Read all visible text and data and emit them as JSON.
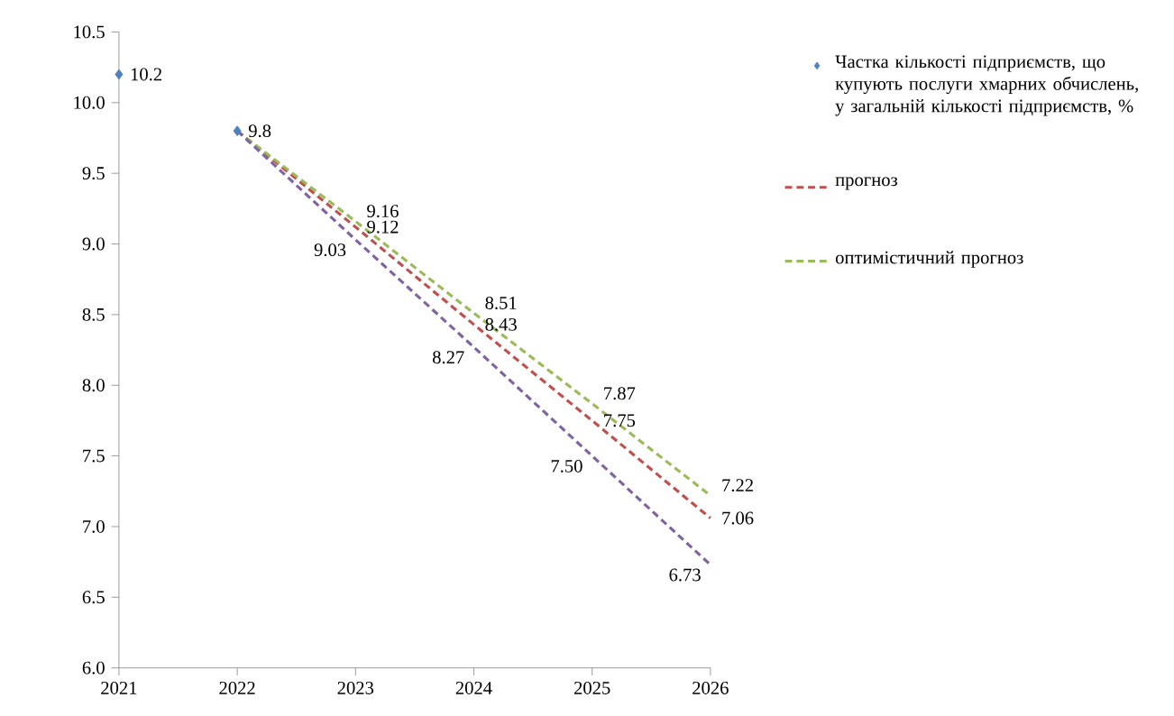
{
  "chart_data": {
    "type": "line",
    "xlim": [
      2021,
      2026
    ],
    "xticks": [
      2021,
      2022,
      2023,
      2024,
      2025,
      2026
    ],
    "ylim": [
      6,
      10.5
    ],
    "yticks": [
      {
        "value": 6,
        "label": "6.0"
      },
      {
        "value": 6.5,
        "label": "6.5"
      },
      {
        "value": 7,
        "label": "7.0"
      },
      {
        "value": 7.5,
        "label": "7.5"
      },
      {
        "value": 8,
        "label": "8.0"
      },
      {
        "value": 8.5,
        "label": "8.5"
      },
      {
        "value": 9,
        "label": "9.0"
      },
      {
        "value": 9.5,
        "label": "9.5"
      },
      {
        "value": 10,
        "label": "10.0"
      },
      {
        "value": 10.5,
        "label": "10.5"
      }
    ],
    "grid": false,
    "legend": "right",
    "series": [
      {
        "name": "Частка кількості підприємств, що купують послуги хмарних обчислень, у загальній кількості підприємств, %",
        "type": "scatter",
        "marker": "diamond",
        "color": "#4f81bd",
        "x": [
          2021,
          2022
        ],
        "values": [
          10.2,
          9.8
        ],
        "value_labels": [
          "10.2",
          "9.8"
        ]
      },
      {
        "name": "прогноз",
        "line_style": "dashed",
        "marker": "none",
        "color": "#c0504d",
        "x": [
          2022,
          2023,
          2024,
          2025,
          2026
        ],
        "values": [
          9.8,
          9.12,
          8.43,
          7.75,
          7.06
        ],
        "value_labels": [
          null,
          "9.12",
          "8.43",
          "7.75",
          "7.06"
        ]
      },
      {
        "name": "оптимістичний прогноз",
        "line_style": "dashed",
        "marker": "none",
        "color": "#9bbb59",
        "x": [
          2022,
          2023,
          2024,
          2025,
          2026
        ],
        "values": [
          9.8,
          9.16,
          8.51,
          7.87,
          7.22
        ],
        "value_labels": [
          null,
          "9.16",
          "8.51",
          "7.87",
          "7.22"
        ]
      },
      {
        "line_style": "dashed",
        "marker": "none",
        "color": "#8064a2",
        "x": [
          2022,
          2023,
          2024,
          2025,
          2026
        ],
        "values": [
          9.8,
          9.03,
          8.27,
          7.5,
          6.73
        ],
        "value_labels": [
          null,
          "9.03",
          "8.27",
          "7.50",
          "6.73"
        ]
      }
    ]
  }
}
